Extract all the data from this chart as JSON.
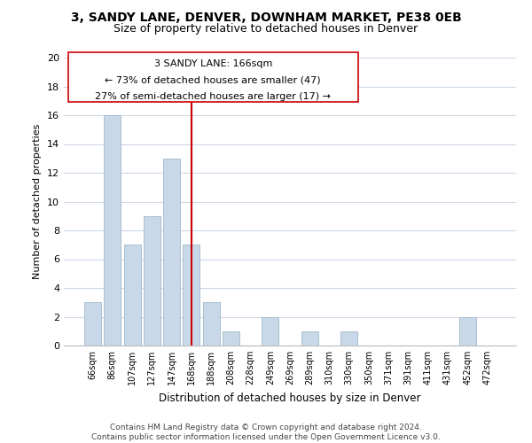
{
  "title": "3, SANDY LANE, DENVER, DOWNHAM MARKET, PE38 0EB",
  "subtitle": "Size of property relative to detached houses in Denver",
  "xlabel": "Distribution of detached houses by size in Denver",
  "ylabel": "Number of detached properties",
  "categories": [
    "66sqm",
    "86sqm",
    "107sqm",
    "127sqm",
    "147sqm",
    "168sqm",
    "188sqm",
    "208sqm",
    "228sqm",
    "249sqm",
    "269sqm",
    "289sqm",
    "310sqm",
    "330sqm",
    "350sqm",
    "371sqm",
    "391sqm",
    "411sqm",
    "431sqm",
    "452sqm",
    "472sqm"
  ],
  "values": [
    3,
    16,
    7,
    9,
    13,
    7,
    3,
    1,
    0,
    2,
    0,
    1,
    0,
    1,
    0,
    0,
    0,
    0,
    0,
    2,
    0
  ],
  "bar_color": "#c8d8e8",
  "bar_edge_color": "#a8bfce",
  "vline_x_index": 5,
  "vline_color": "#cc0000",
  "annotation_line1": "3 SANDY LANE: 166sqm",
  "annotation_line2": "← 73% of detached houses are smaller (47)",
  "annotation_line3": "27% of semi-detached houses are larger (17) →",
  "ylim": [
    0,
    20
  ],
  "yticks": [
    0,
    2,
    4,
    6,
    8,
    10,
    12,
    14,
    16,
    18,
    20
  ],
  "footer_text": "Contains HM Land Registry data © Crown copyright and database right 2024.\nContains public sector information licensed under the Open Government Licence v3.0.",
  "bg_color": "#ffffff",
  "grid_color": "#ccd9e6",
  "title_fontsize": 10,
  "subtitle_fontsize": 9,
  "annotation_fontsize": 8,
  "footer_fontsize": 6.5,
  "ylabel_fontsize": 8,
  "xlabel_fontsize": 8.5
}
